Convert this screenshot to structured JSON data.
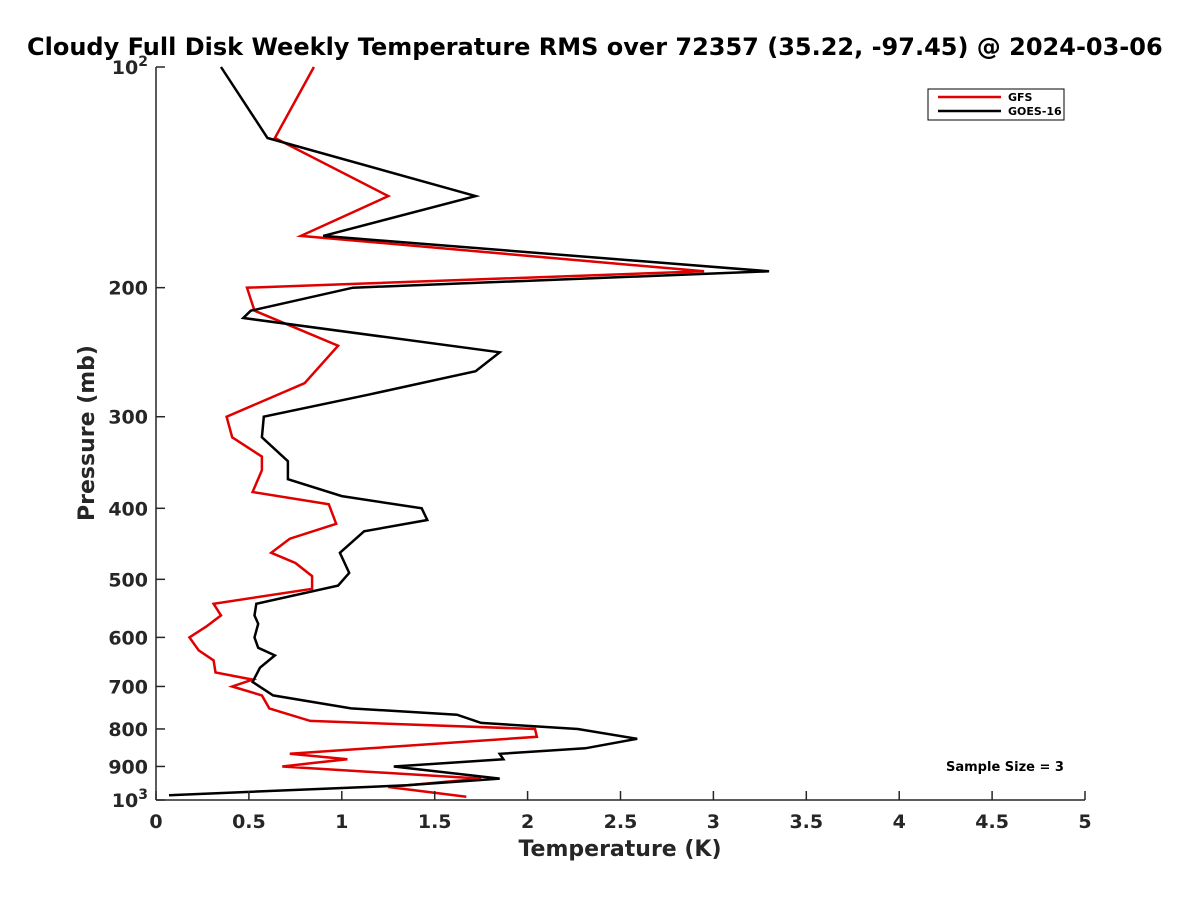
{
  "chart_data": {
    "type": "line",
    "title": "Cloudy Full Disk Weekly Temperature RMS over 72357 (35.22, -97.45) @ 2024-03-06",
    "xlabel": "Temperature (K)",
    "ylabel": "Pressure (mb)",
    "xlim": [
      0,
      5
    ],
    "ylim": [
      100,
      1000
    ],
    "y_scale": "log",
    "y_reversed": true,
    "x_ticks": [
      "0",
      "0.5",
      "1",
      "1.5",
      "2",
      "2.5",
      "3",
      "3.5",
      "4",
      "4.5",
      "5"
    ],
    "y_ticks": [
      {
        "value": 100,
        "label": "10",
        "sup": "2"
      },
      {
        "value": 200,
        "label": "200",
        "sup": ""
      },
      {
        "value": 300,
        "label": "300",
        "sup": ""
      },
      {
        "value": 400,
        "label": "400",
        "sup": ""
      },
      {
        "value": 500,
        "label": "500",
        "sup": ""
      },
      {
        "value": 600,
        "label": "600",
        "sup": ""
      },
      {
        "value": 700,
        "label": "700",
        "sup": ""
      },
      {
        "value": 800,
        "label": "800",
        "sup": ""
      },
      {
        "value": 900,
        "label": "900",
        "sup": ""
      },
      {
        "value": 1000,
        "label": "10",
        "sup": "3"
      }
    ],
    "grid": false,
    "legend_position": "top-right",
    "annotation": "Sample Size = 3",
    "series": [
      {
        "name": "GFS",
        "color": "#e00000",
        "points": [
          [
            0.85,
            100
          ],
          [
            0.64,
            125
          ],
          [
            1.25,
            150
          ],
          [
            0.78,
            170
          ],
          [
            2.95,
            190
          ],
          [
            0.49,
            200
          ],
          [
            0.53,
            215
          ],
          [
            0.98,
            240
          ],
          [
            0.8,
            270
          ],
          [
            0.38,
            300
          ],
          [
            0.41,
            320
          ],
          [
            0.57,
            340
          ],
          [
            0.57,
            355
          ],
          [
            0.52,
            380
          ],
          [
            0.93,
            395
          ],
          [
            0.97,
            420
          ],
          [
            0.72,
            440
          ],
          [
            0.62,
            460
          ],
          [
            0.75,
            475
          ],
          [
            0.84,
            495
          ],
          [
            0.84,
            515
          ],
          [
            0.31,
            540
          ],
          [
            0.35,
            560
          ],
          [
            0.27,
            580
          ],
          [
            0.18,
            600
          ],
          [
            0.23,
            625
          ],
          [
            0.31,
            645
          ],
          [
            0.32,
            670
          ],
          [
            0.52,
            685
          ],
          [
            0.41,
            700
          ],
          [
            0.57,
            720
          ],
          [
            0.61,
            750
          ],
          [
            0.83,
            780
          ],
          [
            2.04,
            800
          ],
          [
            2.05,
            820
          ],
          [
            1.15,
            850
          ],
          [
            0.72,
            865
          ],
          [
            1.03,
            880
          ],
          [
            0.85,
            890
          ],
          [
            0.68,
            900
          ],
          [
            1.75,
            935
          ],
          [
            1.25,
            960
          ],
          [
            1.67,
            990
          ]
        ]
      },
      {
        "name": "GOES-16",
        "color": "#000000",
        "points": [
          [
            0.35,
            100
          ],
          [
            0.6,
            125
          ],
          [
            1.72,
            150
          ],
          [
            0.9,
            170
          ],
          [
            3.3,
            190
          ],
          [
            1.06,
            200
          ],
          [
            0.51,
            215
          ],
          [
            0.47,
            220
          ],
          [
            1.85,
            245
          ],
          [
            1.72,
            260
          ],
          [
            1.14,
            280
          ],
          [
            0.58,
            300
          ],
          [
            0.57,
            320
          ],
          [
            0.71,
            345
          ],
          [
            0.71,
            365
          ],
          [
            1.0,
            385
          ],
          [
            1.43,
            400
          ],
          [
            1.46,
            415
          ],
          [
            1.12,
            430
          ],
          [
            0.99,
            460
          ],
          [
            1.04,
            490
          ],
          [
            0.98,
            510
          ],
          [
            0.54,
            540
          ],
          [
            0.53,
            560
          ],
          [
            0.55,
            575
          ],
          [
            0.53,
            600
          ],
          [
            0.55,
            620
          ],
          [
            0.64,
            635
          ],
          [
            0.56,
            660
          ],
          [
            0.52,
            690
          ],
          [
            0.63,
            720
          ],
          [
            1.05,
            750
          ],
          [
            1.62,
            765
          ],
          [
            1.75,
            785
          ],
          [
            2.27,
            800
          ],
          [
            2.59,
            825
          ],
          [
            2.31,
            850
          ],
          [
            1.85,
            865
          ],
          [
            1.87,
            880
          ],
          [
            1.28,
            900
          ],
          [
            1.85,
            935
          ],
          [
            1.35,
            955
          ],
          [
            0.07,
            985
          ]
        ]
      }
    ]
  }
}
